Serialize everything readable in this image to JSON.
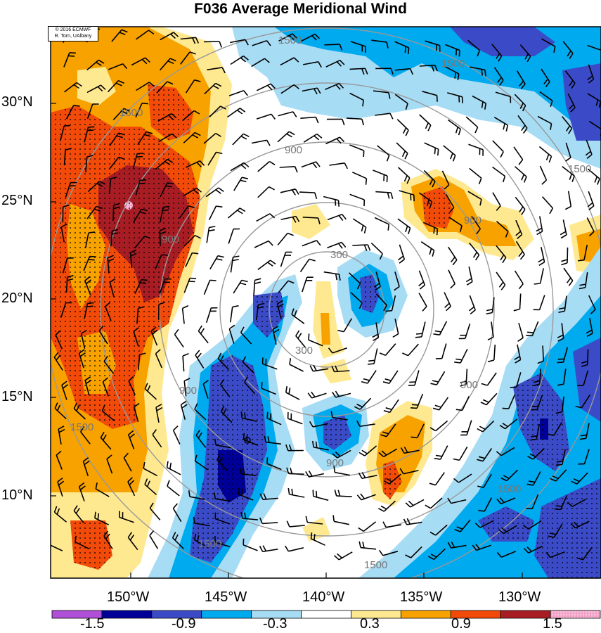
{
  "title": "F036 Average Meridional Wind",
  "credit": {
    "line1": "© 2016 ECMWF",
    "line2": "R. Torn, UAlbany"
  },
  "lat_labels": [
    "30°N",
    "25°N",
    "20°N",
    "15°N",
    "10°N"
  ],
  "lon_labels": [
    "150°W",
    "145°W",
    "140°W",
    "135°W",
    "130°W"
  ],
  "colorbar": {
    "labels": [
      "-1.5",
      "-0.9",
      "-0.3",
      "0.3",
      "0.9",
      "1.5"
    ],
    "colors": [
      "#b04fd8",
      "#000099",
      "#3b4bc8",
      "#00aaee",
      "#a7dcf5",
      "#ffffff",
      "#ffe990",
      "#f8a200",
      "#f24a08",
      "#a81d24",
      "#f4a2c8"
    ]
  },
  "contour_labels": {
    "c300": "300",
    "c900": "900",
    "c1500": "1500"
  },
  "colors": {
    "dark_red": "#a81d24",
    "red": "#f24a08",
    "orange": "#f8a200",
    "yellow": "#ffe990",
    "light_blue": "#a7dcf5",
    "cyan": "#00aaee",
    "blue": "#3b4bc8",
    "navy": "#000099",
    "pink": "#f4a2c8"
  }
}
